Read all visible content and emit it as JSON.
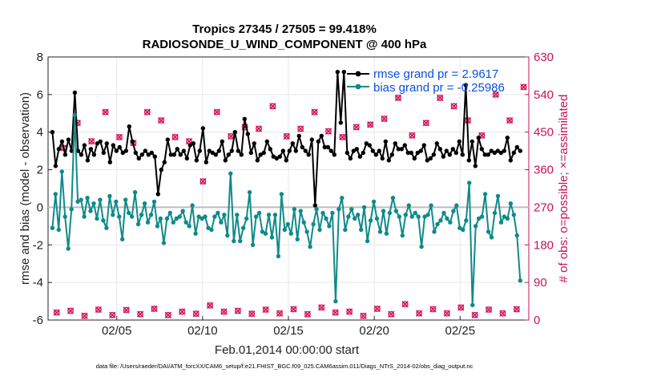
{
  "chart_data": {
    "type": "line",
    "title": "Tropics 27345 / 27505 = 99.418%",
    "subtitle": "RADIOSONDE_U_WIND_COMPONENT @ 400 hPa",
    "xlabel": "Feb.01,2014 00:00:00 start",
    "ylabel": "rmse and bias (model - observation)",
    "y2label": "# of obs: o=possible; ×=assimilated",
    "footnote": "data file: /Users/raeder/DAI/ATM_forcXX/CAM6_setup/f.e21.FHIST_BGC.f09_025.CAM6assim.011/Diags_NTrS_2014-02/obs_diag_output.nc",
    "xlim": [
      1.0,
      29.0
    ],
    "ylim": [
      -6,
      8
    ],
    "y2lim": [
      0,
      630
    ],
    "xticks": [
      5,
      10,
      15,
      20,
      25
    ],
    "xtick_labels": [
      "02/05",
      "02/10",
      "02/15",
      "02/20",
      "02/25"
    ],
    "yticks": [
      -6,
      -4,
      -2,
      0,
      2,
      4,
      6,
      8
    ],
    "ytick_labels": [
      "-6",
      "-4",
      "-2",
      "0",
      "2",
      "4",
      "6",
      "8"
    ],
    "y2ticks": [
      0,
      90,
      180,
      270,
      360,
      450,
      540,
      630
    ],
    "y2tick_labels": [
      "0",
      "90",
      "180",
      "270",
      "360",
      "450",
      "540",
      "630"
    ],
    "grid": true,
    "legend_position": "top-right",
    "series": [
      {
        "name": "rmse grand pr = 2.9617",
        "color": "#000000",
        "axis": "left",
        "values": [
          4.0,
          2.2,
          3.1,
          3.5,
          2.8,
          3.6,
          3.0,
          6.1,
          3.0,
          2.8,
          3.3,
          2.5,
          3.1,
          2.8,
          3.4,
          3.5,
          2.9,
          3.4,
          2.4,
          3.3,
          3.0,
          3.2,
          2.9,
          3.0,
          4.3,
          3.5,
          2.9,
          2.6,
          2.8,
          3.0,
          2.8,
          2.9,
          2.7,
          0.7,
          2.0,
          2.4,
          3.6,
          2.8,
          2.8,
          3.1,
          2.8,
          3.0,
          2.6,
          3.3,
          3.4,
          2.5,
          3.0,
          4.2,
          2.4,
          3.0,
          2.9,
          2.8,
          3.0,
          3.5,
          2.5,
          2.8,
          3.0,
          4.0,
          3.0,
          2.8,
          4.7,
          3.9,
          2.9,
          3.4,
          2.5,
          2.8,
          2.9,
          3.5,
          3.1,
          2.7,
          2.6,
          2.7,
          3.0,
          2.5,
          3.0,
          3.4,
          3.0,
          3.8,
          3.2,
          3.0,
          2.8,
          3.6,
          0.1,
          3.5,
          3.8,
          3.2,
          3.2,
          3.0,
          2.8,
          7.2,
          4.5,
          7.2,
          2.9,
          2.6,
          3.0,
          3.1,
          2.7,
          2.9,
          3.4,
          3.3,
          3.0,
          2.8,
          3.0,
          2.6,
          3.5,
          2.5,
          2.8,
          3.4,
          3.1,
          3.1,
          3.3,
          2.9,
          2.9,
          2.6,
          2.9,
          3.0,
          3.3,
          2.5,
          2.6,
          2.8,
          3.4,
          3.1,
          2.7,
          3.0,
          2.8,
          3.1,
          2.9,
          3.5,
          2.8,
          6.5,
          2.5,
          3.5,
          2.2,
          3.7,
          3.1,
          2.8,
          2.8,
          3.0,
          2.9,
          3.0,
          2.9,
          3.0,
          3.7,
          2.5,
          2.9,
          3.2,
          3.0
        ],
        "bias_note": ""
      },
      {
        "name": "bias grand pr = -0.25986",
        "color": "#0f8a8a",
        "axis": "left",
        "values": [
          -1.1,
          0.7,
          -1.2,
          1.9,
          -0.5,
          -2.2,
          -0.1,
          4.9,
          0.3,
          0.4,
          -0.5,
          0.5,
          -0.2,
          0.2,
          -0.6,
          0.4,
          -0.7,
          -1.1,
          0.6,
          -0.4,
          0.3,
          -0.5,
          -1.7,
          0.4,
          -0.3,
          -0.5,
          0.8,
          -0.9,
          -0.4,
          0.2,
          -0.8,
          -0.4,
          0.3,
          -1.0,
          -0.6,
          -1.9,
          -0.6,
          -0.3,
          -0.8,
          -0.6,
          -0.5,
          -0.2,
          -0.8,
          -1.0,
          0.1,
          -1.4,
          -0.5,
          -0.6,
          -0.5,
          -1.1,
          -1.2,
          -0.5,
          -0.3,
          -0.8,
          -0.4,
          -1.5,
          1.8,
          -1.8,
          -0.4,
          -1.8,
          -1.1,
          -0.6,
          0.8,
          -2.0,
          -0.5,
          -0.3,
          -1.3,
          -1.4,
          -0.4,
          -1.6,
          -0.4,
          -2.6,
          0.7,
          -1.2,
          -0.9,
          -1.4,
          -0.1,
          -1.7,
          -0.2,
          -0.8,
          -1.3,
          -2.1,
          -0.9,
          -0.1,
          -1.2,
          -0.3,
          -0.6,
          -1.0,
          -0.3,
          -5.0,
          -0.1,
          0.5,
          -1.2,
          -0.5,
          -0.1,
          -0.6,
          -0.4,
          -1.2,
          0.0,
          -1.8,
          -0.7,
          0.3,
          -0.6,
          -1.3,
          -0.2,
          -1.4,
          -0.3,
          0.5,
          -0.2,
          -0.5,
          -1.5,
          -0.4,
          0.1,
          -0.5,
          -0.3,
          -0.5,
          -2.1,
          -0.5,
          -0.4,
          0.1,
          -1.3,
          -0.9,
          -0.7,
          -0.3,
          -0.6,
          -0.8,
          -0.2,
          0.1,
          -1.1,
          -1.2,
          -0.7,
          1.3,
          -5.2,
          -1.0,
          -0.6,
          -0.5,
          0.7,
          -1.3,
          -1.6,
          -0.3,
          0.6,
          -0.8,
          -0.5,
          -0.6,
          0.2,
          -0.4,
          -1.5,
          -3.9
        ]
      },
      {
        "name": "possible",
        "color": "#d0185e",
        "axis": "right",
        "marker": "o",
        "values": [
          18,
          412,
          22,
          472,
          10,
          428,
          25,
          498,
          12,
          438,
          24,
          424,
          14,
          498,
          27,
          478,
          12,
          438,
          20,
          428,
          15,
          332,
          35,
          498,
          20,
          440,
          22,
          462,
          15,
          458,
          25,
          512,
          16,
          440,
          26,
          458,
          14,
          498,
          30,
          452,
          18,
          438,
          20,
          462,
          10,
          468,
          27,
          482,
          14,
          532,
          38,
          442,
          16,
          472,
          26,
          532,
          16,
          512,
          30,
          478,
          12,
          442,
          25,
          540,
          16,
          478,
          26,
          558
        ]
      },
      {
        "name": "assimilated",
        "color": "#d0185e",
        "axis": "right",
        "marker": "x",
        "values": [
          18,
          412,
          22,
          472,
          10,
          428,
          25,
          498,
          12,
          438,
          24,
          424,
          14,
          498,
          27,
          478,
          12,
          438,
          20,
          428,
          15,
          332,
          35,
          498,
          20,
          440,
          22,
          462,
          15,
          458,
          25,
          512,
          16,
          440,
          26,
          458,
          14,
          498,
          30,
          452,
          18,
          438,
          20,
          462,
          10,
          468,
          27,
          482,
          14,
          532,
          38,
          442,
          16,
          472,
          26,
          532,
          16,
          512,
          30,
          478,
          12,
          442,
          25,
          540,
          16,
          478,
          26,
          558
        ]
      }
    ]
  }
}
